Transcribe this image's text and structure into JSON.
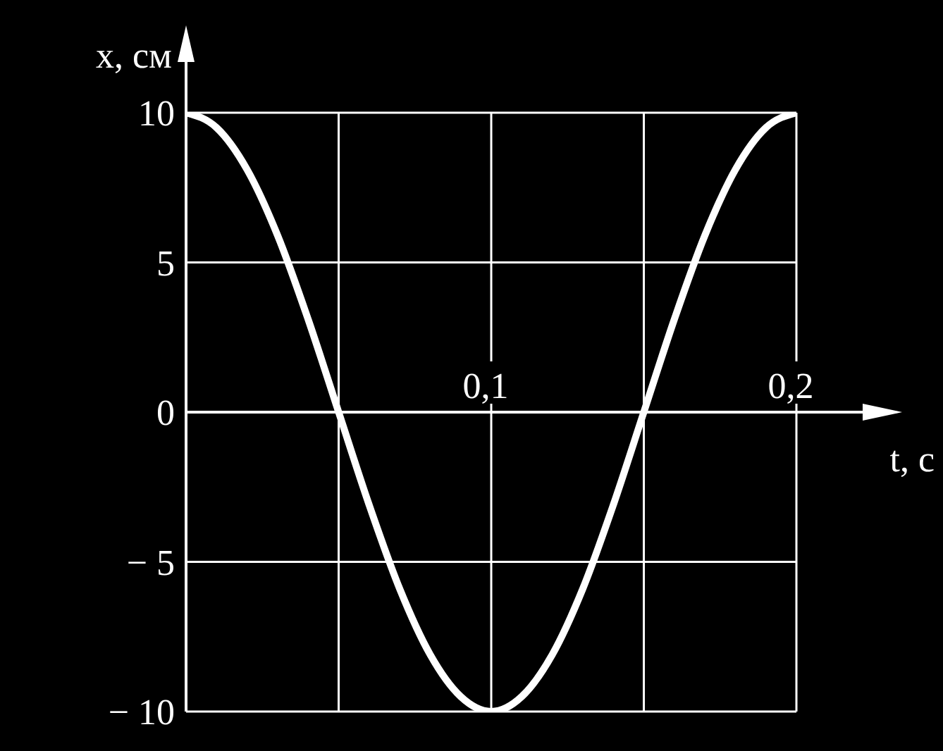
{
  "chart_data": {
    "type": "line",
    "xlabel": "t, с",
    "ylabel": "x, см",
    "x": [
      0,
      0.01,
      0.02,
      0.03,
      0.04,
      0.05,
      0.06,
      0.07,
      0.08,
      0.09,
      0.1,
      0.11,
      0.12,
      0.13,
      0.14,
      0.15,
      0.16,
      0.17,
      0.18,
      0.19,
      0.2
    ],
    "series": [
      {
        "color": "#ffffff",
        "values": [
          10,
          9.5,
          8.1,
          5.9,
          3.1,
          0,
          -3.1,
          -5.9,
          -8.1,
          -9.5,
          -10,
          -9.5,
          -8.1,
          -5.9,
          -3.1,
          0,
          3.1,
          5.9,
          8.1,
          9.5,
          10
        ]
      }
    ],
    "xlim": [
      0,
      0.2
    ],
    "ylim": [
      -10,
      10
    ],
    "xticks": [
      {
        "value": 0,
        "label": null
      },
      {
        "value": 0.05,
        "label": null
      },
      {
        "value": 0.1,
        "label": "0,1"
      },
      {
        "value": 0.15,
        "label": null
      },
      {
        "value": 0.2,
        "label": "0,2"
      }
    ],
    "yticks": [
      {
        "value": -10,
        "label": "− 10"
      },
      {
        "value": -5,
        "label": "− 5"
      },
      0,
      5,
      10
    ],
    "grid": true,
    "line_style": "solid"
  }
}
